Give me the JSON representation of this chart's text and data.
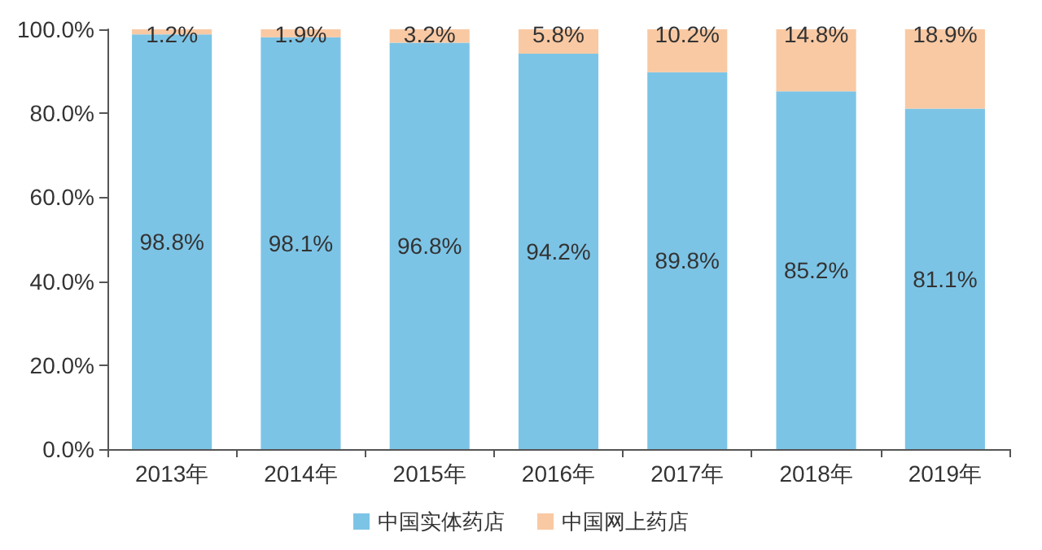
{
  "chart_data": {
    "type": "bar",
    "stacked": true,
    "categories": [
      "2013年",
      "2014年",
      "2015年",
      "2016年",
      "2017年",
      "2018年",
      "2019年"
    ],
    "series": [
      {
        "name": "中国实体药店",
        "color": "#7cc4e6",
        "values": [
          98.8,
          98.1,
          96.8,
          94.2,
          89.8,
          85.2,
          81.1
        ],
        "value_labels": [
          "98.8%",
          "98.1%",
          "96.8%",
          "94.2%",
          "89.8%",
          "85.2%",
          "81.1%"
        ]
      },
      {
        "name": "中国网上药店",
        "color": "#f9c9a3",
        "values": [
          1.2,
          1.9,
          3.2,
          5.8,
          10.2,
          14.8,
          18.9
        ],
        "value_labels": [
          "1.2%",
          "1.9%",
          "3.2%",
          "5.8%",
          "10.2%",
          "14.8%",
          "18.9%"
        ]
      }
    ],
    "ylim": [
      0,
      100
    ],
    "yticks": [
      {
        "value": 0,
        "label": "0.0%"
      },
      {
        "value": 20,
        "label": "20.0%"
      },
      {
        "value": 40,
        "label": "40.0%"
      },
      {
        "value": 60,
        "label": "60.0%"
      },
      {
        "value": 80,
        "label": "80.0%"
      },
      {
        "value": 100,
        "label": "100.0%"
      }
    ],
    "grid": false,
    "legend": "bottom"
  }
}
